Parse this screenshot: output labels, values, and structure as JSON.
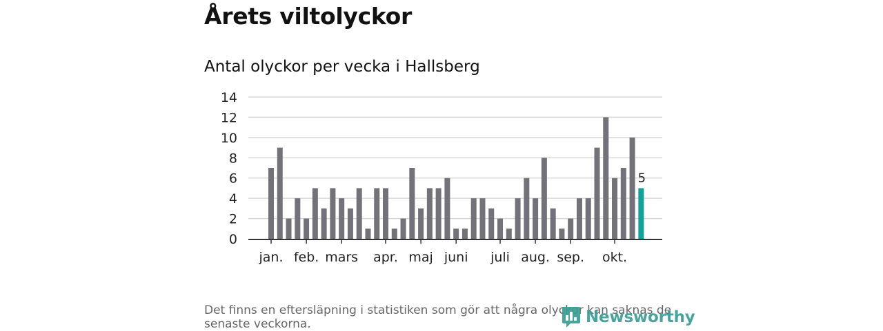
{
  "header": {
    "title": "Årets viltolyckor",
    "subtitle": "Antal olyckor per vecka i Hallsberg"
  },
  "footer": {
    "note": "Det finns en eftersläpning i statistiken som gör att några olyckor kan saknas de senaste veckorna.",
    "brand": "Newsworthy"
  },
  "colors": {
    "bar": "#737278",
    "highlight": "#0fa39a",
    "grid": "#d9d9d9",
    "axis": "#333333"
  },
  "chart_data": {
    "type": "bar",
    "title": "Antal olyckor per vecka i Hallsberg",
    "xlabel": "",
    "ylabel": "",
    "ylim": [
      0,
      14
    ],
    "yticks": [
      "0",
      "2",
      "4",
      "6",
      "8",
      "10",
      "12",
      "14"
    ],
    "values": [
      7,
      9,
      2,
      4,
      2,
      5,
      3,
      5,
      4,
      3,
      5,
      1,
      5,
      5,
      1,
      2,
      7,
      3,
      5,
      5,
      6,
      1,
      1,
      4,
      4,
      3,
      2,
      1,
      4,
      6,
      4,
      8,
      3,
      1,
      2,
      4,
      4,
      9,
      12,
      6,
      7,
      10,
      5
    ],
    "highlight_index": 42,
    "highlight_label": "5",
    "month_labels": [
      {
        "label": "jan.",
        "week_index": 0
      },
      {
        "label": "feb.",
        "week_index": 4
      },
      {
        "label": "mars",
        "week_index": 8
      },
      {
        "label": "apr.",
        "week_index": 13
      },
      {
        "label": "maj",
        "week_index": 17
      },
      {
        "label": "juni",
        "week_index": 21
      },
      {
        "label": "juli",
        "week_index": 26
      },
      {
        "label": "aug.",
        "week_index": 30
      },
      {
        "label": "sep.",
        "week_index": 34
      },
      {
        "label": "okt.",
        "week_index": 39
      }
    ]
  }
}
